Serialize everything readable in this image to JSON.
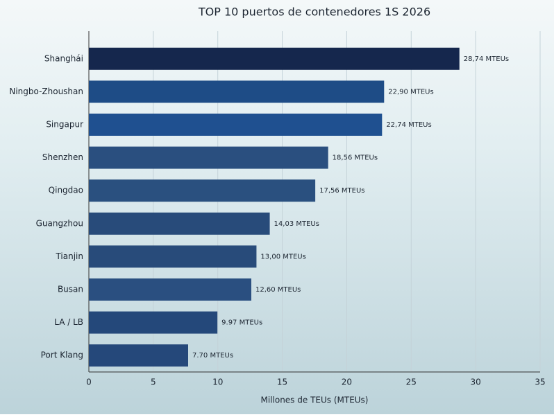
{
  "chart_data": {
    "type": "barh",
    "title": "TOP 10 puertos de contenedores 1S 2026",
    "xlabel": "Millones de TEUs (MTEUs)",
    "categories": [
      "Shanghái",
      "Ningbo-Zhoushan",
      "Singapur",
      "Shenzhen",
      "Qingdao",
      "Guangzhou",
      "Tianjin",
      "Busan",
      "LA / LB",
      "Port Klang"
    ],
    "values": [
      28.74,
      22.9,
      22.74,
      18.56,
      17.56,
      14.03,
      13.0,
      12.6,
      9.97,
      7.7
    ],
    "value_labels": [
      "28,74 MTEUs",
      "22,90 MTEUs",
      "22,74 MTEUs",
      "18,56 MTEUs",
      "17,56 MTEUs",
      "14,03 MTEUs",
      "13,00 MTEUs",
      "12,60 MTEUs",
      "9.97 MTEUs",
      "7.70 MTEUs"
    ],
    "colors": [
      "#15274d",
      "#1e4c86",
      "#1f5090",
      "#2a4f7f",
      "#2a507f",
      "#284b7a",
      "#284b7a",
      "#2a4f80",
      "#24487a",
      "#25487a"
    ],
    "xlim": [
      0,
      35
    ],
    "xticks": [
      0,
      5,
      10,
      15,
      20,
      25,
      30,
      35
    ],
    "grid": true
  }
}
